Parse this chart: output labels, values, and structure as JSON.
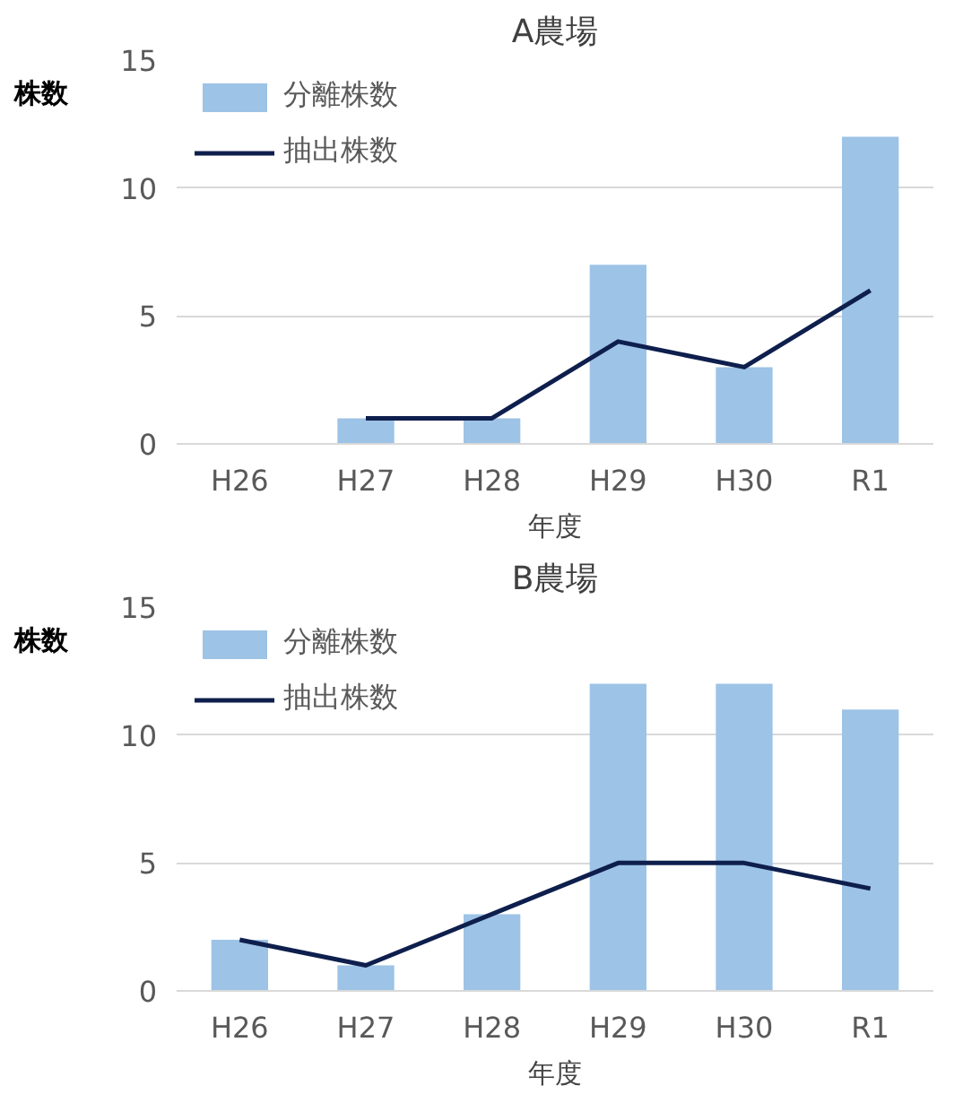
{
  "chart_data": [
    {
      "type": "bar",
      "title": "A農場",
      "xlabel": "年度",
      "ylabel": "株数",
      "categories": [
        "H26",
        "H27",
        "H28",
        "H29",
        "H30",
        "R1"
      ],
      "ylim": [
        0,
        15
      ],
      "yticks": [
        0,
        5,
        10,
        15
      ],
      "grid": "y",
      "legend": "top left",
      "series": [
        {
          "name": "分離株数",
          "color": "#9dc3e6",
          "values": [
            0,
            1,
            1,
            7,
            3,
            12
          ]
        },
        {
          "name": "抽出株数",
          "type": "line",
          "color": "#0e1f4d",
          "values": [
            null,
            1,
            1,
            4,
            3,
            6
          ]
        }
      ]
    },
    {
      "type": "bar",
      "title": "B農場",
      "xlabel": "年度",
      "ylabel": "株数",
      "categories": [
        "H26",
        "H27",
        "H28",
        "H29",
        "H30",
        "R1"
      ],
      "ylim": [
        0,
        15
      ],
      "yticks": [
        0,
        5,
        10,
        15
      ],
      "grid": "y",
      "legend": "top left",
      "series": [
        {
          "name": "分離株数",
          "color": "#9dc3e6",
          "values": [
            2,
            1,
            3,
            12,
            12,
            11
          ]
        },
        {
          "name": "抽出株数",
          "type": "line",
          "color": "#0e1f4d",
          "values": [
            2,
            1,
            3,
            5,
            5,
            4
          ]
        }
      ]
    }
  ]
}
